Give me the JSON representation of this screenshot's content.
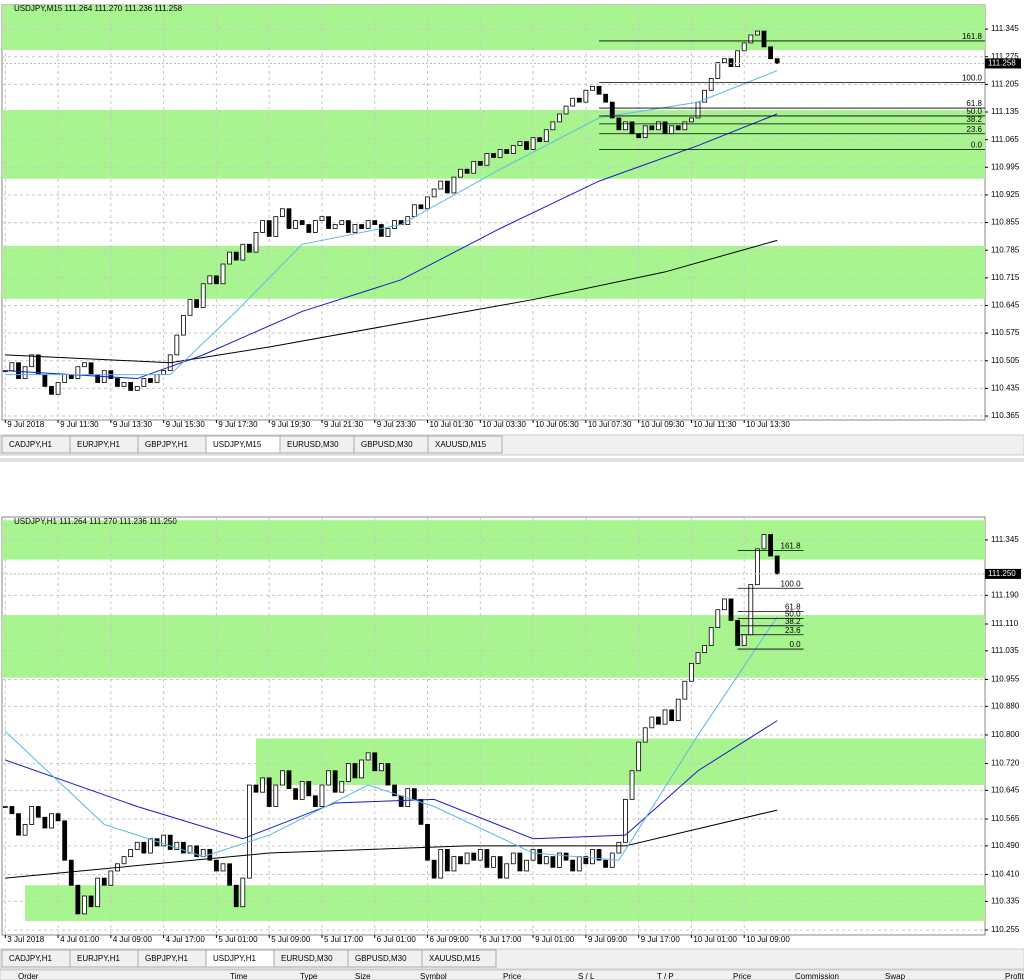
{
  "chart_data": [
    {
      "type": "candlestick",
      "title": "USDJPY,M15  111.264 111.270 111.236 111.258",
      "color": "#000000",
      "values": [
        110.48,
        110.5,
        110.46,
        110.49,
        110.52,
        110.47,
        110.44,
        110.42,
        110.45,
        110.47,
        110.46,
        110.49,
        110.5,
        110.47,
        110.45,
        110.48,
        110.46,
        110.44,
        110.45,
        110.43,
        110.44,
        110.46,
        110.45,
        110.47,
        110.48,
        110.52,
        110.57,
        110.62,
        110.66,
        110.64,
        110.7,
        110.72,
        110.7,
        110.75,
        110.78,
        110.76,
        110.8,
        110.78,
        110.83,
        110.86,
        110.82,
        110.87,
        110.89,
        110.84,
        110.86,
        110.85,
        110.83,
        110.86,
        110.87,
        110.84,
        110.85,
        110.86,
        110.83,
        110.85,
        110.84,
        110.86,
        110.85,
        110.82,
        110.84,
        110.86,
        110.85,
        110.87,
        110.9,
        110.89,
        110.92,
        110.94,
        110.96,
        110.93,
        110.97,
        110.99,
        110.98,
        111.01,
        111.0,
        111.03,
        111.02,
        111.04,
        111.03,
        111.05,
        111.06,
        111.04,
        111.07,
        111.06,
        111.09,
        111.11,
        111.13,
        111.15,
        111.17,
        111.16,
        111.19,
        111.2,
        111.18,
        111.16,
        111.12,
        111.09,
        111.11,
        111.08,
        111.07,
        111.1,
        111.09,
        111.11,
        111.08,
        111.1,
        111.09,
        111.11,
        111.12,
        111.16,
        111.19,
        111.22,
        111.26,
        111.27,
        111.25,
        111.29,
        111.31,
        111.33,
        111.34,
        111.3,
        111.27,
        111.258
      ],
      "series": [
        {
          "color": "#000000",
          "x": [
            0,
            25,
            40,
            60,
            80,
            100,
            117
          ],
          "values": [
            110.52,
            110.5,
            110.54,
            110.6,
            110.66,
            110.73,
            110.81
          ]
        },
        {
          "color": "#1a1acc",
          "x": [
            0,
            20,
            30,
            45,
            60,
            75,
            90,
            105,
            117
          ],
          "values": [
            110.48,
            110.46,
            110.52,
            110.63,
            110.71,
            110.84,
            110.96,
            111.05,
            111.13
          ]
        },
        {
          "color": "#5bb8e8",
          "x": [
            0,
            25,
            35,
            45,
            60,
            75,
            90,
            105,
            117
          ],
          "values": [
            110.47,
            110.47,
            110.63,
            110.8,
            110.85,
            110.99,
            111.12,
            111.16,
            111.24
          ]
        }
      ],
      "zones": [
        {
          "from": 111.406,
          "to": 111.292
        },
        {
          "from": 111.14,
          "to": 110.966
        },
        {
          "from": 110.796,
          "to": 110.662
        }
      ],
      "levels": [
        {
          "label": "161.8",
          "value": 111.315
        },
        {
          "label": "100.0",
          "value": 111.21
        },
        {
          "label": "61.8",
          "value": 111.145
        },
        {
          "label": "50.0",
          "value": 111.125
        },
        {
          "label": "38.2",
          "value": 111.105
        },
        {
          "label": "23.6",
          "value": 111.08
        },
        {
          "label": "0.0",
          "value": 111.04
        }
      ],
      "level_start": 90,
      "last_price": 111.258,
      "xlim": [
        -0.5,
        148.5
      ],
      "ylim": [
        110.355,
        111.406
      ],
      "yticks": [
        111.345,
        111.275,
        111.205,
        111.135,
        111.065,
        110.995,
        110.925,
        110.855,
        110.785,
        110.715,
        110.645,
        110.575,
        110.505,
        110.435,
        110.365
      ],
      "xticks": [
        {
          "value": 0,
          "label": "9 Jul 2018"
        },
        {
          "value": 8,
          "label": "9 Jul 11:30"
        },
        {
          "value": 16,
          "label": "9 Jul 13:30"
        },
        {
          "value": 24,
          "label": "9 Jul 15:30"
        },
        {
          "value": 32,
          "label": "9 Jul 17:30"
        },
        {
          "value": 40,
          "label": "9 Jul 19:30"
        },
        {
          "value": 48,
          "label": "9 Jul 21:30"
        },
        {
          "value": 56,
          "label": "9 Jul 23:30"
        },
        {
          "value": 64,
          "label": "10 Jul 01:30"
        },
        {
          "value": 72,
          "label": "10 Jul 03:30"
        },
        {
          "value": 80,
          "label": "10 Jul 05:30"
        },
        {
          "value": 88,
          "label": "10 Jul 07:30"
        },
        {
          "value": 96,
          "label": "10 Jul 09:30"
        },
        {
          "value": 104,
          "label": "10 Jul 11:30"
        },
        {
          "value": 112,
          "label": "10 Jul 13:30"
        }
      ],
      "grid": true
    },
    {
      "type": "candlestick",
      "title": "USDJPY,H1  111.264 111.270 111.236 111.250",
      "color": "#000000",
      "values": [
        110.6,
        110.58,
        110.52,
        110.55,
        110.6,
        110.57,
        110.54,
        110.58,
        110.56,
        110.45,
        110.38,
        110.3,
        110.35,
        110.32,
        110.4,
        110.38,
        110.42,
        110.44,
        110.46,
        110.48,
        110.5,
        110.47,
        110.51,
        110.49,
        110.52,
        110.48,
        110.5,
        110.47,
        110.49,
        110.46,
        110.48,
        110.45,
        110.42,
        110.44,
        110.38,
        110.32,
        110.4,
        110.66,
        110.64,
        110.68,
        110.6,
        110.66,
        110.7,
        110.65,
        110.62,
        110.67,
        110.63,
        110.6,
        110.66,
        110.7,
        110.64,
        110.67,
        110.72,
        110.68,
        110.73,
        110.75,
        110.7,
        110.72,
        110.66,
        110.63,
        110.6,
        110.65,
        110.62,
        110.55,
        110.45,
        110.4,
        110.48,
        110.42,
        110.46,
        110.44,
        110.47,
        110.45,
        110.48,
        110.43,
        110.46,
        110.4,
        110.44,
        110.47,
        110.42,
        110.45,
        110.48,
        110.44,
        110.46,
        110.43,
        110.47,
        110.45,
        110.42,
        110.46,
        110.44,
        110.48,
        110.45,
        110.43,
        110.47,
        110.5,
        110.62,
        110.7,
        110.78,
        110.82,
        110.85,
        110.83,
        110.87,
        110.84,
        110.9,
        110.95,
        111.0,
        111.03,
        111.05,
        111.1,
        111.15,
        111.18,
        111.12,
        111.05,
        111.08,
        111.22,
        111.32,
        111.36,
        111.3,
        111.25
      ],
      "series": [
        {
          "color": "#000000",
          "x": [
            0,
            40,
            70,
            94,
            117
          ],
          "values": [
            110.4,
            110.47,
            110.49,
            110.49,
            110.59
          ]
        },
        {
          "color": "#1a1acc",
          "x": [
            0,
            20,
            36,
            50,
            65,
            80,
            94,
            105,
            117
          ],
          "values": [
            110.73,
            110.6,
            110.51,
            110.61,
            110.62,
            110.51,
            110.52,
            110.7,
            110.84
          ]
        },
        {
          "color": "#5bb8e8",
          "x": [
            0,
            15,
            30,
            40,
            55,
            65,
            80,
            93,
            105,
            117
          ],
          "values": [
            110.81,
            110.55,
            110.46,
            110.52,
            110.66,
            110.6,
            110.47,
            110.45,
            110.8,
            111.13
          ]
        }
      ],
      "zones": [
        {
          "from": 111.4,
          "to": 111.29
        },
        {
          "from": 111.135,
          "to": 110.96
        },
        {
          "from": 110.79,
          "to": 110.66,
          "start": 38
        },
        {
          "from": 110.38,
          "to": 110.28,
          "start": 3
        }
      ],
      "levels": [
        {
          "label": "161.8",
          "value": 111.315
        },
        {
          "label": "100.0",
          "value": 111.21
        },
        {
          "label": "61.8",
          "value": 111.145
        },
        {
          "label": "50.0",
          "value": 111.125
        },
        {
          "label": "38.2",
          "value": 111.105
        },
        {
          "label": "23.6",
          "value": 111.08
        },
        {
          "label": "0.0",
          "value": 111.04
        }
      ],
      "level_start": 111,
      "level_end": 121,
      "last_price": {
        "value": 111.25,
        "label": "111.250"
      },
      "xlim": [
        -0.5,
        148.5
      ],
      "ylim": [
        110.241,
        111.409
      ],
      "yticks": [
        111.345,
        {
          "value": 111.19,
          "label": "111.190"
        },
        {
          "value": 111.11,
          "label": "111.110"
        },
        111.035,
        110.955,
        {
          "value": 110.88,
          "label": "110.880"
        },
        {
          "value": 110.8,
          "label": "110.800"
        },
        {
          "value": 110.72,
          "label": "110.720"
        },
        110.645,
        110.565,
        {
          "value": 110.49,
          "label": "110.490"
        },
        {
          "value": 110.41,
          "label": "110.410"
        },
        110.335,
        110.255
      ],
      "xticks": [
        {
          "value": 0,
          "label": "3 Jul 2018"
        },
        {
          "value": 8,
          "label": "4 Jul 01:00"
        },
        {
          "value": 16,
          "label": "4 Jul 09:00"
        },
        {
          "value": 24,
          "label": "4 Jul 17:00"
        },
        {
          "value": 32,
          "label": "5 Jul 01:00"
        },
        {
          "value": 40,
          "label": "5 Jul 09:00"
        },
        {
          "value": 48,
          "label": "5 Jul 17:00"
        },
        {
          "value": 56,
          "label": "6 Jul 01:00"
        },
        {
          "value": 64,
          "label": "6 Jul 09:00"
        },
        {
          "value": 72,
          "label": "6 Jul 17:00"
        },
        {
          "value": 80,
          "label": "9 Jul 01:00"
        },
        {
          "value": 88,
          "label": "9 Jul 09:00"
        },
        {
          "value": 96,
          "label": "9 Jul 17:00"
        },
        {
          "value": 104,
          "label": "10 Jul 01:00"
        },
        {
          "value": 112,
          "label": "10 Jul 09:00"
        }
      ],
      "grid": true
    }
  ],
  "windows": [
    {
      "tabs": [
        "CADJPY,H1",
        "EURJPY,H1",
        "GBPJPY,H1",
        "USDJPY,M15",
        "EURUSD,M30",
        "GBPUSD,M30",
        "XAUUSD,M15"
      ],
      "active": 3
    },
    {
      "tabs": [
        "CADJPY,H1",
        "EURJPY,H1",
        "GBPJPY,H1",
        "USDJPY,H1",
        "EURUSD,M30",
        "GBPUSD,M30",
        "XAUUSD,M15"
      ],
      "active": 3
    }
  ],
  "terminal": {
    "columns": [
      "Order",
      "Time",
      "Type",
      "Size",
      "Symbol",
      "Price",
      "S / L",
      "T / P",
      "Price",
      "Commission",
      "Swap",
      "Profit"
    ]
  }
}
